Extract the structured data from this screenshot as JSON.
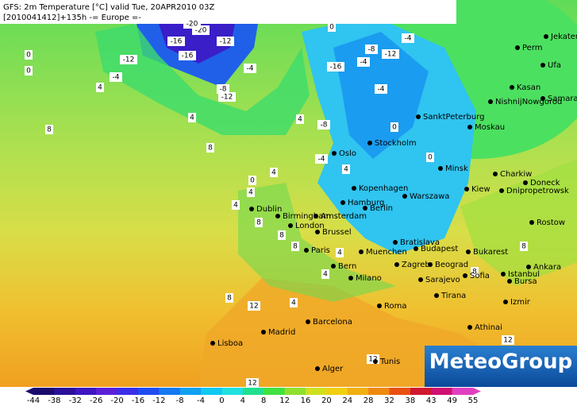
{
  "header": {
    "line1": "GFS: 2m Temperature [°C] valid Tue, 20APR2010 03Z",
    "line2": "[2010041412]+135h -= Europe =-"
  },
  "logo": "MeteoGroup",
  "cities": [
    "Jekaterinb",
    "Perm",
    "Ufa",
    "Kasan",
    "Samara",
    "NishnijNowgorod",
    "SanktPeterburg",
    "Moskau",
    "Stockholm",
    "Oslo",
    "Minsk",
    "Charkiw",
    "Kiew",
    "Doneck",
    "Dnipropetrowsk",
    "Kopenhagen",
    "Warszawa",
    "Hamburg",
    "Berlin",
    "Dublin",
    "Birmingham",
    "Amsterdam",
    "Rostow",
    "London",
    "Brussel",
    "Paris",
    "Bratislava",
    "Muenchen",
    "Budapest",
    "Bukarest",
    "Bern",
    "Beograd",
    "Milano",
    "Zagreb",
    "Ankara",
    "Sofia",
    "Istanbul",
    "Bursa",
    "Sarajevo",
    "Tirana",
    "Izmir",
    "Roma",
    "Barcelona",
    "Madrid",
    "Athinai",
    "Lisboa",
    "Tunis",
    "Alger"
  ],
  "contour_labels": [
    "-20",
    "-16",
    "-20",
    "-12",
    "-12",
    "-16",
    "-8",
    "-12",
    "-4",
    "-4",
    "0",
    "0",
    "4",
    "4",
    "4",
    "8",
    "8",
    "0",
    "-4",
    "-8",
    "-12",
    "-4",
    "-16",
    "-4",
    "-8",
    "0",
    "-4",
    "4",
    "0",
    "0",
    "4",
    "4",
    "4",
    "8",
    "8",
    "8",
    "4",
    "8",
    "4",
    "8",
    "12",
    "12",
    "12",
    "12",
    "4",
    "8"
  ],
  "colorbar": {
    "ticks": [
      -44,
      -38,
      -32,
      -26,
      -20,
      -16,
      -12,
      -8,
      -4,
      0,
      4,
      8,
      12,
      16,
      20,
      24,
      28,
      32,
      38,
      43,
      49,
      55
    ],
    "colors": [
      "#1a0a6e",
      "#2a0f9a",
      "#3c16c0",
      "#5a20d8",
      "#3a2ee8",
      "#1f4cf0",
      "#1478f0",
      "#10a0f0",
      "#10c8f0",
      "#20e0e0",
      "#20e090",
      "#40e040",
      "#90e030",
      "#d0e020",
      "#f0d010",
      "#f0b010",
      "#f08810",
      "#e85010",
      "#d01830",
      "#d01070",
      "#e040c0"
    ]
  }
}
